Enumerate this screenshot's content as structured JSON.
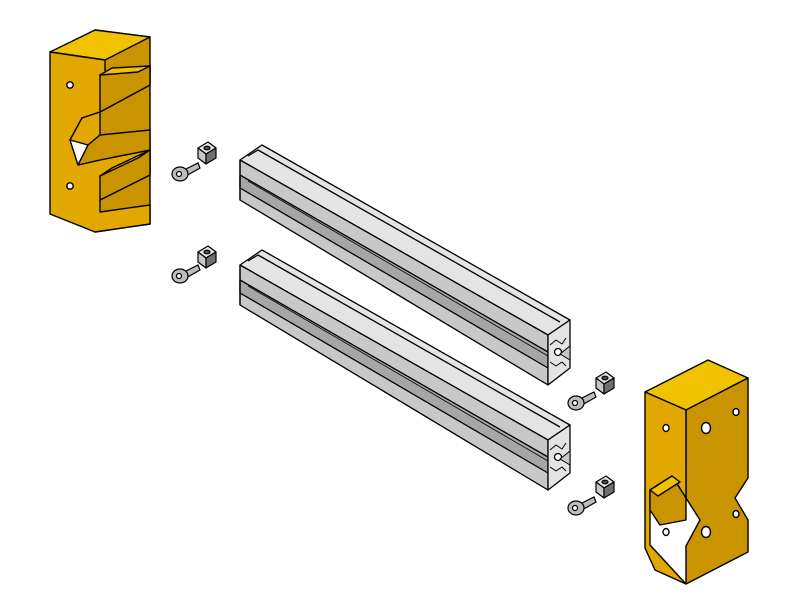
{
  "diagram": {
    "colors": {
      "bracket_front": "#e2a800",
      "bracket_side": "#c99400",
      "bracket_top": "#f0c200",
      "rail_light": "#e4e4e4",
      "rail_mid": "#c8c8c8",
      "rail_dark": "#a6a6a6",
      "outline": "#000000",
      "fastener": "#bdbdbd",
      "background": "#ffffff"
    },
    "parts": {
      "left_bracket": {
        "kind": "end-bracket",
        "count": 1
      },
      "right_bracket": {
        "kind": "end-bracket",
        "count": 1
      },
      "rails": {
        "kind": "aluminum-extrusion",
        "count": 2
      },
      "screws": {
        "kind": "hex-socket-screw",
        "count": 4
      },
      "tnuts": {
        "kind": "t-slot-nut",
        "count": 4
      }
    }
  }
}
